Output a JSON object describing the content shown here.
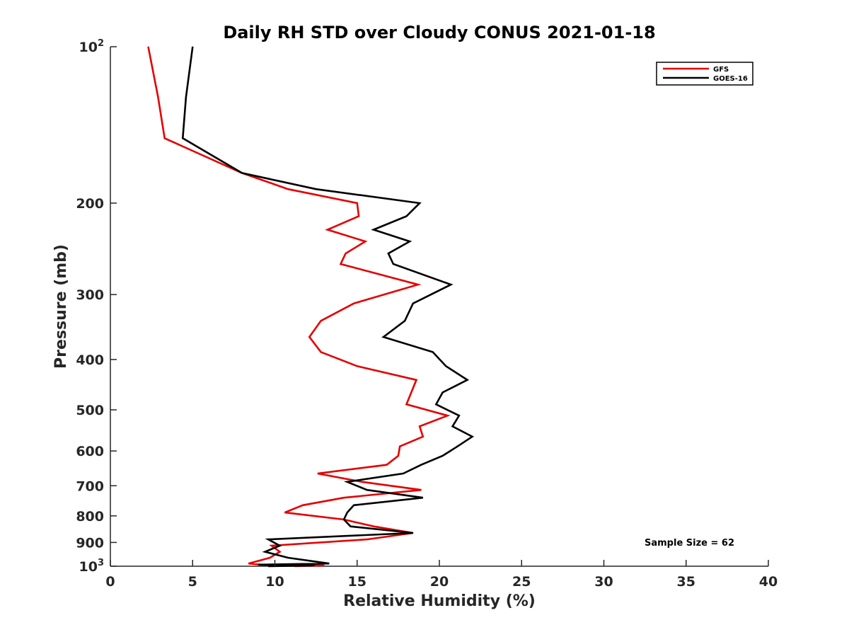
{
  "chart_data": {
    "type": "line",
    "title": "Daily RH STD over Cloudy CONUS 2021-01-18",
    "xlabel": "Relative Humidity (%)",
    "ylabel": "Pressure (mb)",
    "xlim": [
      0,
      40
    ],
    "ylim": [
      100,
      1000
    ],
    "y_scale": "log",
    "y_reversed": true,
    "x_ticks": [
      "0",
      "5",
      "10",
      "15",
      "20",
      "25",
      "30",
      "35",
      "40"
    ],
    "y_ticks": [
      {
        "value": 100,
        "base": "10",
        "exp": "2"
      },
      {
        "value": 200,
        "label": "200"
      },
      {
        "value": 300,
        "label": "300"
      },
      {
        "value": 400,
        "label": "400"
      },
      {
        "value": 500,
        "label": "500"
      },
      {
        "value": 600,
        "label": "600"
      },
      {
        "value": 700,
        "label": "700"
      },
      {
        "value": 800,
        "label": "800"
      },
      {
        "value": 900,
        "label": "900"
      },
      {
        "value": 1000,
        "base": "10",
        "exp": "3"
      }
    ],
    "grid": false,
    "legend_position": "top-right",
    "annotation": "Sample Size = 62",
    "series": [
      {
        "name": "GFS",
        "color": "#e50000",
        "points": [
          [
            2.3,
            100
          ],
          [
            2.9,
            125
          ],
          [
            3.3,
            150
          ],
          [
            8.0,
            175
          ],
          [
            10.8,
            188
          ],
          [
            15.0,
            200
          ],
          [
            15.1,
            212
          ],
          [
            13.2,
            225
          ],
          [
            15.5,
            237
          ],
          [
            14.3,
            250
          ],
          [
            14.0,
            262
          ],
          [
            18.7,
            287
          ],
          [
            14.8,
            312
          ],
          [
            12.8,
            337
          ],
          [
            12.1,
            362
          ],
          [
            12.8,
            387
          ],
          [
            15.0,
            412
          ],
          [
            18.6,
            438
          ],
          [
            18.0,
            488
          ],
          [
            20.5,
            513
          ],
          [
            18.8,
            538
          ],
          [
            19.0,
            563
          ],
          [
            17.6,
            588
          ],
          [
            17.5,
            613
          ],
          [
            16.8,
            638
          ],
          [
            12.6,
            663
          ],
          [
            15.3,
            688
          ],
          [
            18.9,
            713
          ],
          [
            14.2,
            738
          ],
          [
            11.7,
            763
          ],
          [
            10.6,
            788
          ],
          [
            14.2,
            813
          ],
          [
            16.0,
            838
          ],
          [
            18.4,
            863
          ],
          [
            15.6,
            888
          ],
          [
            9.8,
            913
          ],
          [
            10.3,
            938
          ],
          [
            9.7,
            963
          ],
          [
            8.4,
            988
          ],
          [
            9.2,
            993
          ],
          [
            13.0,
            997
          ],
          [
            11.2,
            1000
          ]
        ]
      },
      {
        "name": "GOES-16",
        "color": "#000000",
        "points": [
          [
            5.0,
            100
          ],
          [
            4.6,
            125
          ],
          [
            4.4,
            150
          ],
          [
            8.0,
            175
          ],
          [
            12.5,
            188
          ],
          [
            18.8,
            200
          ],
          [
            18.0,
            212
          ],
          [
            16.0,
            225
          ],
          [
            18.2,
            237
          ],
          [
            16.9,
            250
          ],
          [
            17.2,
            262
          ],
          [
            20.7,
            287
          ],
          [
            18.4,
            312
          ],
          [
            17.9,
            337
          ],
          [
            16.6,
            362
          ],
          [
            19.6,
            387
          ],
          [
            20.4,
            412
          ],
          [
            21.7,
            438
          ],
          [
            20.2,
            463
          ],
          [
            19.8,
            488
          ],
          [
            21.2,
            513
          ],
          [
            20.8,
            538
          ],
          [
            22.0,
            563
          ],
          [
            21.1,
            588
          ],
          [
            20.2,
            613
          ],
          [
            18.9,
            638
          ],
          [
            17.8,
            663
          ],
          [
            14.4,
            688
          ],
          [
            15.6,
            713
          ],
          [
            19.0,
            738
          ],
          [
            14.8,
            763
          ],
          [
            14.4,
            788
          ],
          [
            14.2,
            813
          ],
          [
            14.6,
            838
          ],
          [
            18.4,
            863
          ],
          [
            9.6,
            888
          ],
          [
            10.3,
            913
          ],
          [
            9.4,
            938
          ],
          [
            10.8,
            963
          ],
          [
            13.3,
            988
          ],
          [
            9.0,
            993
          ],
          [
            12.4,
            997
          ],
          [
            9.6,
            1000
          ]
        ]
      }
    ]
  }
}
